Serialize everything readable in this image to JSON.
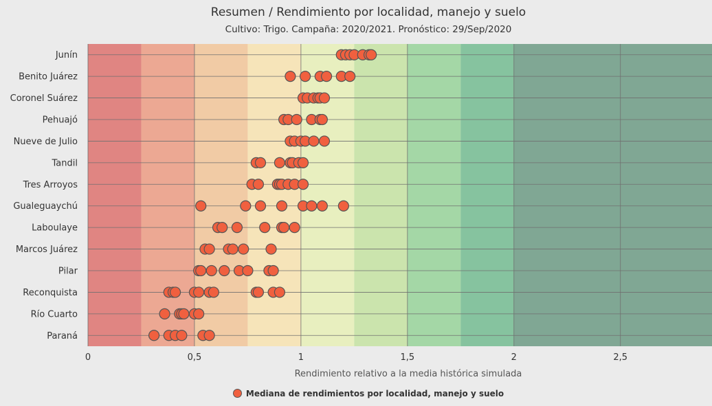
{
  "chart_data": {
    "type": "scatter",
    "title": "Resumen / Rendimiento por localidad, manejo y suelo",
    "subtitle": "Cultivo: Trigo. Campaña: 2020/2021. Pronóstico: 29/Sep/2020",
    "xlabel": "Rendimiento relativo a la media histórica simulada",
    "ylabel": "",
    "xlim": [
      0,
      2.93
    ],
    "x_ticks": [
      {
        "value": 0,
        "label": "0"
      },
      {
        "value": 0.5,
        "label": "0,5"
      },
      {
        "value": 1,
        "label": "1"
      },
      {
        "value": 1.5,
        "label": "1,5"
      },
      {
        "value": 2,
        "label": "2"
      },
      {
        "value": 2.5,
        "label": "2,5"
      }
    ],
    "grid": true,
    "legend_position": "bottom-center",
    "bands": [
      {
        "from": 0.0,
        "to": 0.25,
        "color": "#e08582"
      },
      {
        "from": 0.25,
        "to": 0.5,
        "color": "#eca893"
      },
      {
        "from": 0.5,
        "to": 0.75,
        "color": "#f1cba5"
      },
      {
        "from": 0.75,
        "to": 1.0,
        "color": "#f6e4b9"
      },
      {
        "from": 1.0,
        "to": 1.25,
        "color": "#e8efbf"
      },
      {
        "from": 1.25,
        "to": 1.5,
        "color": "#cbe4ad"
      },
      {
        "from": 1.5,
        "to": 1.75,
        "color": "#a4d7a6"
      },
      {
        "from": 1.75,
        "to": 2.0,
        "color": "#86c39f"
      },
      {
        "from": 2.0,
        "to": 2.93,
        "color": "#80a794"
      }
    ],
    "categories": [
      "Junín",
      "Benito Juárez",
      "Coronel Suárez",
      "Pehuajó",
      "Nueve de Julio",
      "Tandil",
      "Tres Arroyos",
      "Gualeguaychú",
      "Laboulaye",
      "Marcos Juárez",
      "Pilar",
      "Reconquista",
      "Río Cuarto",
      "Paraná"
    ],
    "series": [
      {
        "name": "Mediana de rendimientos por localidad, manejo y suelo",
        "color": "#f0603f",
        "points": [
          {
            "category": "Junín",
            "values": [
              1.19,
              1.21,
              1.23,
              1.25,
              1.29,
              1.32,
              1.33
            ]
          },
          {
            "category": "Benito Juárez",
            "values": [
              0.95,
              1.02,
              1.09,
              1.12,
              1.19,
              1.23
            ]
          },
          {
            "category": "Coronel Suárez",
            "values": [
              1.01,
              1.03,
              1.06,
              1.08,
              1.09,
              1.11
            ]
          },
          {
            "category": "Pehuajó",
            "values": [
              0.92,
              0.94,
              0.98,
              1.05,
              1.09,
              1.1
            ]
          },
          {
            "category": "Nueve de Julio",
            "values": [
              0.95,
              0.97,
              1.0,
              1.02,
              1.06,
              1.11
            ]
          },
          {
            "category": "Tandil",
            "values": [
              0.79,
              0.81,
              0.9,
              0.95,
              0.96,
              0.99,
              1.01
            ]
          },
          {
            "category": "Tres Arroyos",
            "values": [
              0.77,
              0.8,
              0.89,
              0.9,
              0.91,
              0.94,
              0.97,
              1.01
            ]
          },
          {
            "category": "Gualeguaychú",
            "values": [
              0.53,
              0.74,
              0.81,
              0.91,
              1.01,
              1.05,
              1.1,
              1.2
            ]
          },
          {
            "category": "Laboulaye",
            "values": [
              0.61,
              0.63,
              0.7,
              0.83,
              0.91,
              0.92,
              0.97
            ]
          },
          {
            "category": "Marcos Juárez",
            "values": [
              0.55,
              0.57,
              0.66,
              0.68,
              0.73,
              0.86
            ]
          },
          {
            "category": "Pilar",
            "values": [
              0.52,
              0.53,
              0.58,
              0.64,
              0.71,
              0.75,
              0.85,
              0.87
            ]
          },
          {
            "category": "Reconquista",
            "values": [
              0.38,
              0.4,
              0.41,
              0.5,
              0.52,
              0.57,
              0.59,
              0.79,
              0.8,
              0.87,
              0.9
            ]
          },
          {
            "category": "Río Cuarto",
            "values": [
              0.36,
              0.43,
              0.44,
              0.45,
              0.5,
              0.52
            ]
          },
          {
            "category": "Paraná",
            "values": [
              0.31,
              0.38,
              0.41,
              0.44,
              0.54,
              0.57
            ]
          }
        ]
      }
    ]
  }
}
